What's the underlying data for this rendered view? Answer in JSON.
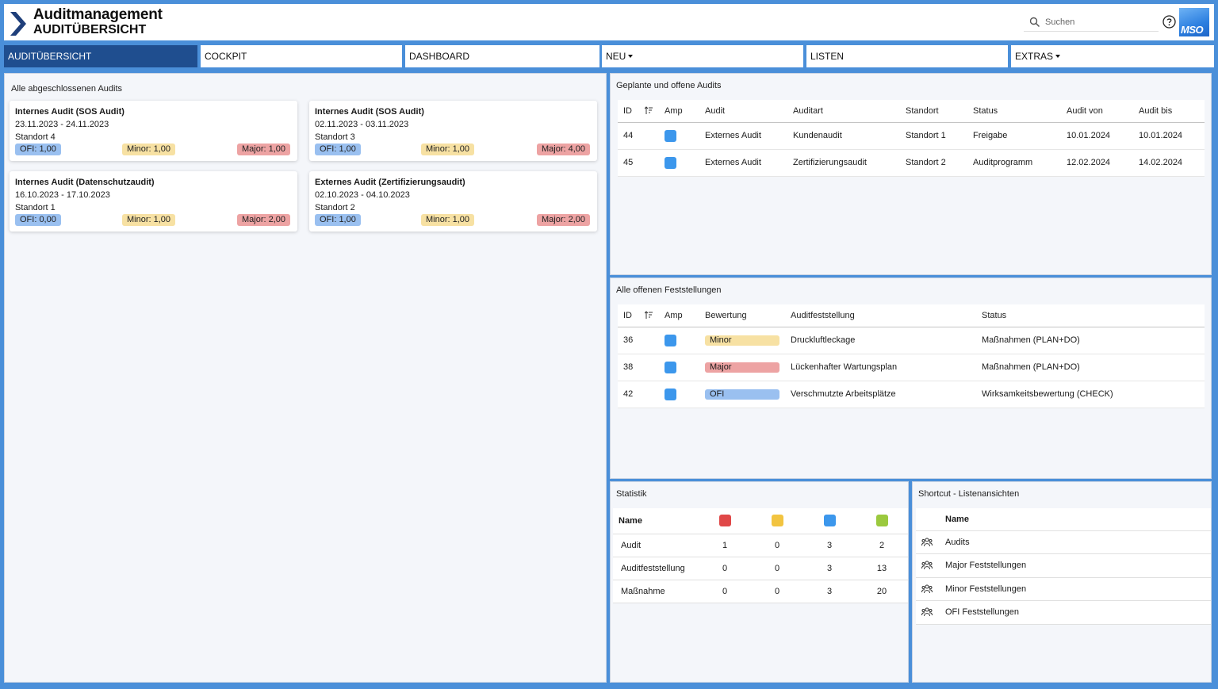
{
  "header": {
    "app_title": "Auditmanagement",
    "page_title": "AUDITÜBERSICHT",
    "search_placeholder": "Suchen",
    "brand_logo_text": "MSO",
    "icons": [
      "chevron-right-icon",
      "search-icon",
      "help-icon"
    ]
  },
  "nav": {
    "tabs": [
      {
        "label": "AUDITÜBERSICHT",
        "active": true
      },
      {
        "label": "COCKPIT"
      },
      {
        "label": "DASHBOARD"
      },
      {
        "label": "NEU",
        "dropdown": true
      },
      {
        "label": "LISTEN"
      },
      {
        "label": "EXTRAS",
        "dropdown": true
      }
    ]
  },
  "completed": {
    "title": "Alle abgeschlossenen Audits",
    "cards": [
      {
        "title": "Internes Audit (SOS Audit)",
        "dates": "23.11.2023 - 24.11.2023",
        "site": "Standort 4",
        "ofi": "OFI: 1,00",
        "minor": "Minor: 1,00",
        "major": "Major: 1,00"
      },
      {
        "title": "Internes Audit (SOS Audit)",
        "dates": "02.11.2023 - 03.11.2023",
        "site": "Standort 3",
        "ofi": "OFI: 1,00",
        "minor": "Minor: 1,00",
        "major": "Major: 4,00"
      },
      {
        "title": "Internes Audit (Datenschutzaudit)",
        "dates": "16.10.2023 - 17.10.2023",
        "site": "Standort 1",
        "ofi": "OFI: 0,00",
        "minor": "Minor: 1,00",
        "major": "Major: 2,00"
      },
      {
        "title": "Externes Audit (Zertifizierungsaudit)",
        "dates": "02.10.2023 - 04.10.2023",
        "site": "Standort 2",
        "ofi": "OFI: 1,00",
        "minor": "Minor: 1,00",
        "major": "Major: 2,00"
      }
    ]
  },
  "planned": {
    "title": "Geplante und offene Audits",
    "columns": [
      "ID",
      "Amp",
      "Audit",
      "Auditart",
      "Standort",
      "Status",
      "Audit von",
      "Audit bis"
    ],
    "rows": [
      {
        "id": "44",
        "amp_color": "#3c97ec",
        "audit": "Externes Audit",
        "auditart": "Kundenaudit",
        "standort": "Standort 1",
        "status": "Freigabe",
        "von": "10.01.2024",
        "bis": "10.01.2024"
      },
      {
        "id": "45",
        "amp_color": "#3c97ec",
        "audit": "Externes Audit",
        "auditart": "Zertifizierungsaudit",
        "standort": "Standort 2",
        "status": "Auditprogramm",
        "von": "12.02.2024",
        "bis": "14.02.2024"
      }
    ]
  },
  "findings": {
    "title": "Alle offenen Feststellungen",
    "columns": [
      "ID",
      "Amp",
      "Bewertung",
      "Auditfeststellung",
      "Status"
    ],
    "rows": [
      {
        "id": "36",
        "amp_color": "#3c97ec",
        "rating": "Minor",
        "rating_color": "#f7e1a3",
        "finding": "Druckluftleckage",
        "status": "Maßnahmen (PLAN+DO)"
      },
      {
        "id": "38",
        "amp_color": "#3c97ec",
        "rating": "Major",
        "rating_color": "#eda3a3",
        "finding": "Lückenhafter Wartungsplan",
        "status": "Maßnahmen (PLAN+DO)"
      },
      {
        "id": "42",
        "amp_color": "#3c97ec",
        "rating": "OFI",
        "rating_color": "#9ac0f0",
        "finding": "Verschmutzte Arbeitsplätze",
        "status": "Wirksamkeitsbewertung (CHECK)"
      }
    ]
  },
  "statistics": {
    "title": "Statistik",
    "name_header": "Name",
    "color_columns": [
      "#e04848",
      "#f2c440",
      "#3c97ec",
      "#9bc93e"
    ],
    "rows": [
      {
        "name": "Audit",
        "values": [
          "1",
          "0",
          "3",
          "2"
        ]
      },
      {
        "name": "Auditfeststellung",
        "values": [
          "0",
          "0",
          "3",
          "13"
        ]
      },
      {
        "name": "Maßnahme",
        "values": [
          "0",
          "0",
          "3",
          "20"
        ]
      }
    ]
  },
  "shortcuts": {
    "title": "Shortcut - Listenansichten",
    "name_header": "Name",
    "items": [
      "Audits",
      "Major Feststellungen",
      "Minor Feststellungen",
      "OFI Feststellungen"
    ]
  }
}
